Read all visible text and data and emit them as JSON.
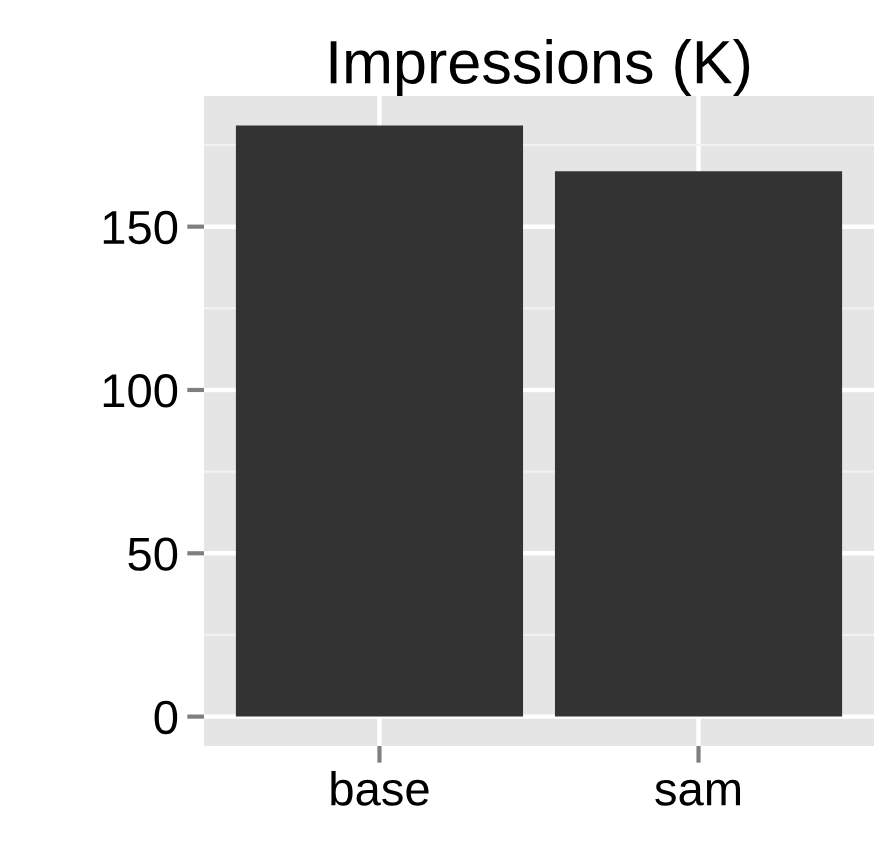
{
  "chart_data": {
    "type": "bar",
    "title": "Impressions (K)",
    "categories": [
      "base",
      "sam"
    ],
    "values": [
      181,
      167
    ],
    "color": "#333333",
    "ylim": [
      -9,
      190
    ],
    "yticks": [
      0,
      50,
      100,
      150
    ],
    "grid": true
  }
}
